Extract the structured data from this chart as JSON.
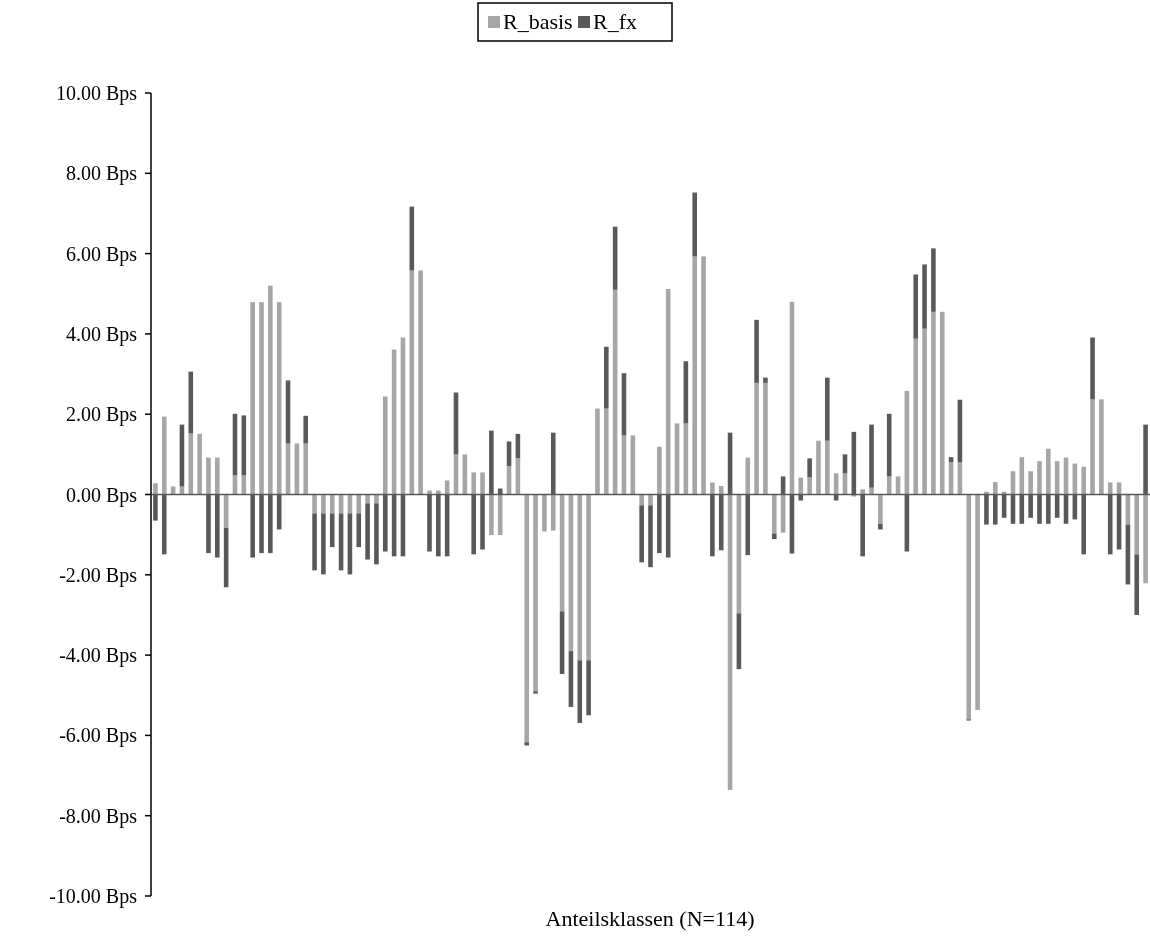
{
  "chart_data": {
    "type": "bar",
    "stacked": true,
    "xlabel": "Anteilsklassen (N=114)",
    "legend": "top",
    "categories": [
      null,
      null,
      null,
      null,
      null,
      null,
      null,
      null,
      null,
      null,
      null,
      null,
      null,
      null,
      null,
      null,
      null,
      null,
      null,
      null,
      null,
      null,
      null,
      null,
      null,
      null,
      null,
      null,
      null,
      null,
      null,
      null,
      null,
      null,
      null,
      null,
      null,
      null,
      null,
      null,
      null,
      null,
      null,
      null,
      null,
      null,
      null,
      null,
      null,
      null,
      null,
      null,
      null,
      null,
      null,
      null,
      null,
      null,
      null,
      null,
      null,
      null,
      null,
      null,
      null,
      null,
      null,
      null,
      null,
      null,
      null,
      null,
      null,
      null,
      null,
      null,
      null,
      null,
      null,
      null,
      null,
      null,
      null,
      null,
      null,
      null,
      null,
      null,
      null,
      null,
      null,
      null,
      null,
      null,
      null,
      null,
      null,
      null,
      null,
      null,
      null,
      null,
      null,
      null,
      null,
      null,
      null,
      null,
      null,
      null,
      null,
      null,
      null
    ],
    "ylim": [
      -10,
      10
    ],
    "yticks": [
      {
        "value": -10,
        "label": "-10.00 Bps"
      },
      {
        "value": -8,
        "label": "-8.00 Bps"
      },
      {
        "value": -6,
        "label": "-6.00 Bps"
      },
      {
        "value": -4,
        "label": "-4.00 Bps"
      },
      {
        "value": -2,
        "label": "-2.00 Bps"
      },
      {
        "value": 0,
        "label": "0.00 Bps"
      },
      {
        "value": 2,
        "label": "2.00 Bps"
      },
      {
        "value": 4,
        "label": "4.00 Bps"
      },
      {
        "value": 6,
        "label": "6.00 Bps"
      },
      {
        "value": 8,
        "label": "8.00 Bps"
      },
      {
        "value": 10,
        "label": "10.00 Bps"
      }
    ],
    "tick_labels": "y",
    "series": [
      {
        "name": "R_basis",
        "color": "#a6a6a6",
        "values": [
          0.28,
          1.94,
          0.2,
          0.2,
          1.52,
          1.51,
          0.92,
          0.92,
          -0.83,
          0.48,
          0.48,
          4.79,
          4.79,
          5.2,
          4.79,
          1.27,
          1.27,
          1.27,
          -0.47,
          -0.47,
          -0.47,
          -0.47,
          -0.47,
          -0.47,
          -0.22,
          -0.22,
          2.44,
          3.61,
          3.91,
          5.58,
          5.58,
          0.1,
          0.1,
          0.35,
          1.0,
          1.0,
          0.55,
          0.55,
          -1.01,
          -1.01,
          0.71,
          0.91,
          -6.17,
          -4.9,
          -0.92,
          -0.9,
          -2.91,
          -3.9,
          -4.13,
          -4.13,
          2.14,
          2.14,
          5.1,
          1.47,
          1.47,
          -0.27,
          -0.27,
          1.19,
          5.12,
          1.77,
          1.77,
          5.93,
          5.93,
          0.3,
          0.21,
          -7.36,
          -2.96,
          0.92,
          2.78,
          2.78,
          -0.97,
          -0.95,
          4.8,
          0.42,
          0.43,
          1.34,
          1.34,
          0.53,
          0.53,
          -0.05,
          0.13,
          0.17,
          -0.73,
          0.45,
          0.45,
          2.58,
          3.88,
          4.13,
          4.55,
          4.55,
          0.8,
          0.8,
          -5.6,
          -5.37,
          0.07,
          0.31,
          0.07,
          0.58,
          0.93,
          0.58,
          0.83,
          1.14,
          0.83,
          0.92,
          0.77,
          0.69,
          2.37,
          2.37,
          0.3,
          0.3,
          -0.75,
          -1.49,
          -2.21
        ]
      },
      {
        "name": "R_fx",
        "color": "#595959",
        "values": [
          -0.65,
          -1.49,
          0,
          1.54,
          1.54,
          0,
          -1.46,
          -1.57,
          -1.48,
          1.53,
          1.49,
          -1.57,
          -1.46,
          -1.46,
          -0.87,
          1.57,
          0,
          0.69,
          -1.42,
          -1.52,
          -0.84,
          -1.42,
          -1.52,
          -0.84,
          -1.4,
          -1.52,
          -1.42,
          -1.54,
          -1.54,
          1.59,
          0,
          -1.42,
          -1.54,
          -1.54,
          1.54,
          0,
          -1.49,
          -1.37,
          1.59,
          0.15,
          0.61,
          0.6,
          -0.08,
          -0.06,
          0,
          1.54,
          -1.56,
          -1.39,
          -1.56,
          -1.37,
          0,
          1.54,
          1.57,
          1.55,
          0,
          -1.42,
          -1.54,
          -1.46,
          -1.57,
          0,
          1.55,
          1.59,
          0,
          -1.54,
          -1.39,
          1.54,
          -1.39,
          -1.51,
          1.57,
          0.13,
          -0.14,
          0.45,
          -1.47,
          -0.15,
          0.47,
          0,
          1.57,
          -0.15,
          0.47,
          1.56,
          -1.54,
          1.57,
          -0.14,
          1.56,
          0,
          -1.42,
          1.6,
          1.6,
          1.58,
          0,
          0.13,
          1.56,
          -0.03,
          0,
          -0.75,
          -0.75,
          -0.58,
          -0.73,
          -0.73,
          -0.58,
          -0.73,
          -0.73,
          -0.58,
          -0.73,
          -0.62,
          -1.49,
          1.54,
          0,
          -1.49,
          -1.37,
          -1.49,
          -1.51,
          1.74
        ]
      }
    ]
  }
}
